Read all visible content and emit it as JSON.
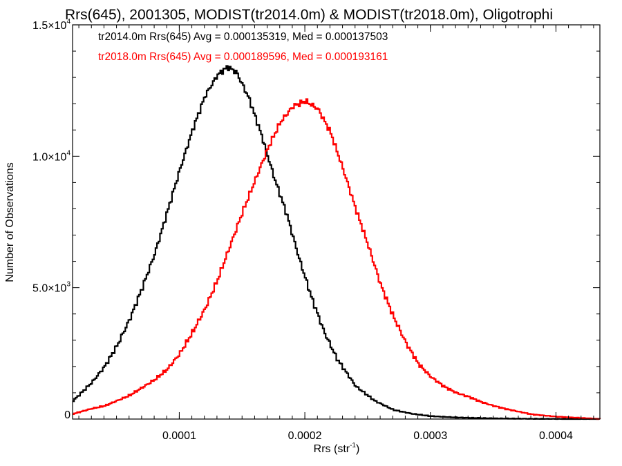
{
  "chart_data": {
    "type": "line",
    "title": "Rrs(645), 2001305, MODIST(tr2014.0m) & MODIST(tr2018.0m), Oligotrophi",
    "xlabel": "Rrs (str",
    "xlabel_sup": "-1",
    "xlabel_close": ")",
    "ylabel": "Number of Observations",
    "xlim": [
      1.5e-05,
      0.000435
    ],
    "ylim": [
      0,
      15000
    ],
    "x_ticks": [
      {
        "value": 0.0001,
        "label": "0.0001"
      },
      {
        "value": 0.0002,
        "label": "0.0002"
      },
      {
        "value": 0.0003,
        "label": "0.0003"
      },
      {
        "value": 0.0004,
        "label": "0.0004"
      }
    ],
    "y_ticks": [
      {
        "value": 0,
        "label": "0",
        "sup": ""
      },
      {
        "value": 5000,
        "label": "5.0×10",
        "sup": "3"
      },
      {
        "value": 10000,
        "label": "1.0×10",
        "sup": "4"
      },
      {
        "value": 15000,
        "label": "1.5×10",
        "sup": "4"
      }
    ],
    "grid": false,
    "legend_position": "top-left",
    "series": [
      {
        "name": "tr2014.0m Rrs(645) Avg = 0.000135319, Med = 0.000137503",
        "color": "#000000",
        "x": [
          1.5e-05,
          3e-05,
          4e-05,
          5e-05,
          6e-05,
          7e-05,
          8e-05,
          9e-05,
          0.0001,
          0.00011,
          0.00012,
          0.00013,
          0.000138,
          0.000145,
          0.000155,
          0.000165,
          0.000175,
          0.000185,
          0.000195,
          0.000205,
          0.000215,
          0.000225,
          0.00024,
          0.000255,
          0.00027,
          0.000285,
          0.0003,
          0.00032,
          0.00034,
          0.00036,
          0.00038,
          0.0004,
          0.000435
        ],
        "y": [
          700,
          1400,
          2000,
          2800,
          3800,
          5000,
          6300,
          7900,
          9500,
          11000,
          12300,
          13100,
          13400,
          13200,
          12200,
          10800,
          9200,
          7800,
          6100,
          4600,
          3300,
          2300,
          1250,
          700,
          350,
          200,
          110,
          60,
          35,
          20,
          10,
          5,
          0
        ]
      },
      {
        "name": "tr2018.0m Rrs(645) Avg = 0.000189596, Med = 0.000193161",
        "color": "#ff0000",
        "x": [
          1.5e-05,
          3e-05,
          4e-05,
          5e-05,
          6e-05,
          7e-05,
          8e-05,
          9e-05,
          0.0001,
          0.00011,
          0.00012,
          0.00013,
          0.00014,
          0.00015,
          0.00016,
          0.00017,
          0.00018,
          0.00019,
          0.0002,
          0.00021,
          0.00022,
          0.00023,
          0.00024,
          0.00025,
          0.00026,
          0.00027,
          0.00028,
          0.00029,
          0.0003,
          0.00031,
          0.00032,
          0.00033,
          0.00034,
          0.00035,
          0.00036,
          0.00037,
          0.00038,
          0.0004,
          0.00042,
          0.000435
        ],
        "y": [
          200,
          400,
          500,
          700,
          900,
          1200,
          1500,
          1900,
          2500,
          3300,
          4200,
          5300,
          6600,
          7900,
          9100,
          10300,
          11300,
          11900,
          12100,
          11800,
          10900,
          9500,
          8000,
          6600,
          5100,
          3900,
          2900,
          2100,
          1600,
          1250,
          1000,
          850,
          650,
          500,
          380,
          280,
          180,
          90,
          40,
          0
        ]
      }
    ]
  }
}
